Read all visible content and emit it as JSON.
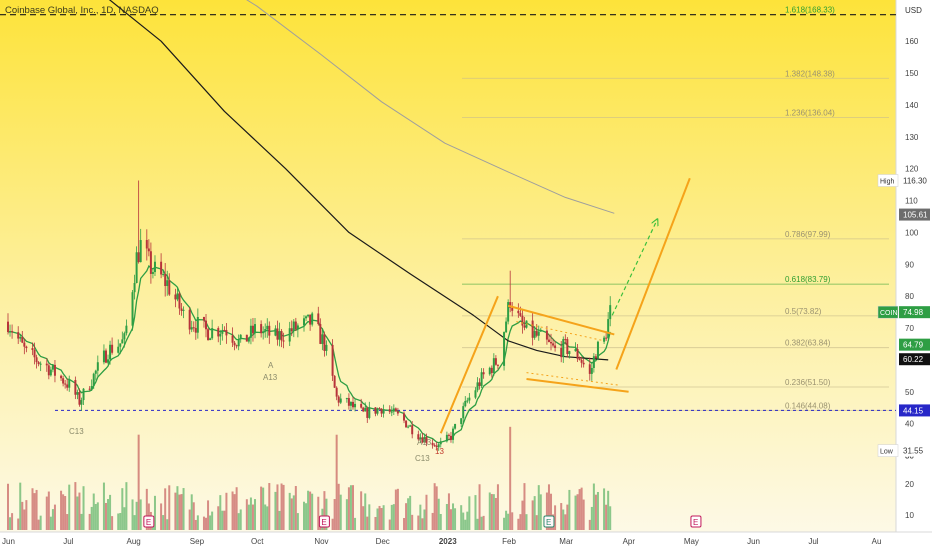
{
  "header": {
    "title": "Coinbase Global, Inc., 1D, NASDAQ"
  },
  "axis": {
    "currency": "USD",
    "price_ticks": [
      10,
      20,
      30,
      40,
      50,
      60,
      70,
      80,
      90,
      100,
      110,
      120,
      130,
      140,
      150,
      160
    ],
    "volume_ticks": [
      10,
      20
    ],
    "month_labels": [
      "Jun",
      "Jul",
      "Aug",
      "Sep",
      "Oct",
      "Nov",
      "Dec",
      "2023",
      "Feb",
      "Mar",
      "Apr",
      "May",
      "Jun",
      "Jul",
      "Au"
    ]
  },
  "badges": {
    "high": {
      "label": "High",
      "value": "116.30"
    },
    "ma_a": {
      "value": "105.61"
    },
    "coin": {
      "label": "COIN",
      "value": "74.98"
    },
    "ma_b": {
      "value": "64.79"
    },
    "ma_c": {
      "value": "60.22"
    },
    "support": {
      "value": "44.15"
    },
    "low": {
      "label": "Low",
      "value": "31.55"
    }
  },
  "fib_levels": [
    {
      "label": "1.618(168.33)",
      "price": 168.33,
      "key": "fib_1618"
    },
    {
      "label": "1.382(148.38)",
      "price": 148.38,
      "key": "fib_1382"
    },
    {
      "label": "1.236(136.04)",
      "price": 136.04,
      "key": "fib_1236"
    },
    {
      "label": "0.786(97.99)",
      "price": 97.99,
      "key": "fib_0786"
    },
    {
      "label": "0.618(83.79)",
      "price": 83.79,
      "key": "fib_0618"
    },
    {
      "label": "0.5(73.82)",
      "price": 73.82,
      "key": "fib_05"
    },
    {
      "label": "0.382(63.84)",
      "price": 63.84,
      "key": "fib_0382"
    },
    {
      "label": "0.236(51.50)",
      "price": 51.5,
      "key": "fib_0236"
    },
    {
      "label": "0.146(44.08)",
      "price": 44.08,
      "key": "fib_0146"
    }
  ],
  "annotations": {
    "markers": [
      "C13",
      "A13",
      "A",
      "A13",
      "C13",
      "13"
    ],
    "earnings_label": "E"
  },
  "colors": {
    "bg_top": "#fde33a",
    "bg_bottom": "#fdf9e6",
    "up": "#2e9e44",
    "down": "#b7333a",
    "pattern": "#f5a31a",
    "ma200": "#1a1a1a",
    "ma_long": "#9e9e9e",
    "fib_highlight": "#2f9e30",
    "support_line": "#2727c8",
    "earnings": "#c2185b"
  },
  "chart_data": {
    "type": "candlestick",
    "title": "Coinbase Global, Inc., 1D, NASDAQ",
    "ylabel": "USD",
    "ylim": [
      6,
      172
    ],
    "x_range": [
      "2022-06-01",
      "2023-08-10"
    ],
    "current_price": 74.98,
    "high": 116.3,
    "low": 31.55,
    "close_path": [
      {
        "date": "2022-06-01",
        "close": 72
      },
      {
        "date": "2022-06-10",
        "close": 62
      },
      {
        "date": "2022-06-20",
        "close": 58
      },
      {
        "date": "2022-07-01",
        "close": 52
      },
      {
        "date": "2022-07-06",
        "close": 47
      },
      {
        "date": "2022-07-13",
        "close": 55
      },
      {
        "date": "2022-07-20",
        "close": 63
      },
      {
        "date": "2022-07-28",
        "close": 66
      },
      {
        "date": "2022-08-03",
        "close": 92
      },
      {
        "date": "2022-08-05",
        "close": 96
      },
      {
        "date": "2022-08-10",
        "close": 89
      },
      {
        "date": "2022-08-18",
        "close": 84
      },
      {
        "date": "2022-08-26",
        "close": 74
      },
      {
        "date": "2022-09-06",
        "close": 69
      },
      {
        "date": "2022-09-15",
        "close": 70
      },
      {
        "date": "2022-09-23",
        "close": 65
      },
      {
        "date": "2022-10-01",
        "close": 70
      },
      {
        "date": "2022-10-10",
        "close": 67
      },
      {
        "date": "2022-10-20",
        "close": 70
      },
      {
        "date": "2022-10-28",
        "close": 72
      },
      {
        "date": "2022-11-03",
        "close": 65
      },
      {
        "date": "2022-11-09",
        "close": 48
      },
      {
        "date": "2022-11-15",
        "close": 46
      },
      {
        "date": "2022-11-22",
        "close": 43
      },
      {
        "date": "2022-12-01",
        "close": 45
      },
      {
        "date": "2022-12-10",
        "close": 42
      },
      {
        "date": "2022-12-20",
        "close": 36
      },
      {
        "date": "2022-12-29",
        "close": 33
      },
      {
        "date": "2023-01-04",
        "close": 36
      },
      {
        "date": "2023-01-12",
        "close": 47
      },
      {
        "date": "2023-01-20",
        "close": 55
      },
      {
        "date": "2023-01-27",
        "close": 60
      },
      {
        "date": "2023-02-02",
        "close": 79
      },
      {
        "date": "2023-02-08",
        "close": 70
      },
      {
        "date": "2023-02-16",
        "close": 67
      },
      {
        "date": "2023-02-24",
        "close": 63
      },
      {
        "date": "2023-03-01",
        "close": 64
      },
      {
        "date": "2023-03-08",
        "close": 61
      },
      {
        "date": "2023-03-13",
        "close": 55
      },
      {
        "date": "2023-03-16",
        "close": 63
      },
      {
        "date": "2023-03-20",
        "close": 66
      },
      {
        "date": "2023-03-23",
        "close": 75
      }
    ],
    "ma_200": [
      {
        "date": "2022-07-15",
        "value": 176
      },
      {
        "date": "2022-08-15",
        "value": 160
      },
      {
        "date": "2022-09-15",
        "value": 138
      },
      {
        "date": "2022-10-15",
        "value": 120
      },
      {
        "date": "2022-11-15",
        "value": 100
      },
      {
        "date": "2022-12-15",
        "value": 87
      },
      {
        "date": "2023-01-15",
        "value": 74
      },
      {
        "date": "2023-02-01",
        "value": 66
      },
      {
        "date": "2023-02-15",
        "value": 63
      },
      {
        "date": "2023-03-01",
        "value": 61
      },
      {
        "date": "2023-03-22",
        "value": 60
      }
    ],
    "ma_long": [
      {
        "date": "2022-09-01",
        "value": 183
      },
      {
        "date": "2022-10-01",
        "value": 171
      },
      {
        "date": "2022-11-01",
        "value": 156
      },
      {
        "date": "2022-12-01",
        "value": 141
      },
      {
        "date": "2023-01-01",
        "value": 128
      },
      {
        "date": "2023-02-01",
        "value": 119
      },
      {
        "date": "2023-03-01",
        "value": 111
      },
      {
        "date": "2023-03-25",
        "value": 106
      }
    ],
    "horizontal_lines": [
      {
        "price": 168.33,
        "style": "dashed"
      },
      {
        "price": 44.15,
        "style": "dotted"
      }
    ],
    "trendlines": [
      {
        "from": {
          "date": "2022-12-30",
          "price": 37
        },
        "to": {
          "date": "2023-01-27",
          "price": 80
        }
      },
      {
        "from": {
          "date": "2023-02-01",
          "price": 77
        },
        "to": {
          "date": "2023-03-25",
          "price": 68
        }
      },
      {
        "from": {
          "date": "2023-02-10",
          "price": 54
        },
        "to": {
          "date": "2023-04-01",
          "price": 50
        }
      },
      {
        "from": {
          "date": "2023-03-26",
          "price": 57
        },
        "to": {
          "date": "2023-05-01",
          "price": 117
        }
      }
    ],
    "projection": {
      "from": {
        "date": "2023-03-24",
        "price": 74
      },
      "to": {
        "date": "2023-04-15",
        "price": 104
      }
    },
    "earnings_dates": [
      "2022-08-09",
      "2022-11-03",
      "2023-02-21",
      "2023-05-04"
    ]
  }
}
